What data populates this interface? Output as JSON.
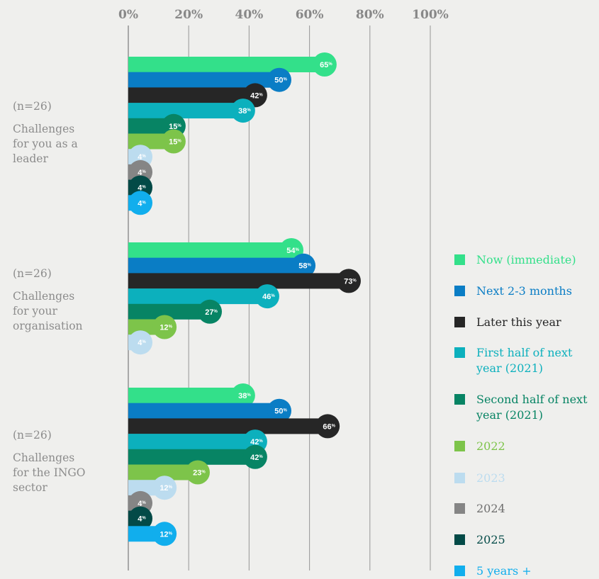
{
  "chart_data": {
    "type": "bar",
    "orientation": "horizontal",
    "xlim": [
      0,
      100
    ],
    "x_ticks": [
      "0%",
      "20%",
      "40%",
      "60%",
      "80%",
      "100%"
    ],
    "grid": true,
    "legend_position": "right",
    "value_suffix": "%",
    "groups": [
      {
        "n": "(n=26)",
        "title": "Challenges\nfor you as a\nleader",
        "values": [
          65,
          50,
          42,
          38,
          15,
          15,
          4,
          4,
          4,
          4
        ]
      },
      {
        "n": "(n=26)",
        "title": "Challenges\nfor your\norganisation",
        "values": [
          54,
          58,
          73,
          46,
          27,
          12,
          4,
          null,
          null,
          null
        ]
      },
      {
        "n": "(n=26)",
        "title": "Challenges\nfor the INGO\nsector",
        "values": [
          38,
          50,
          66,
          42,
          42,
          23,
          12,
          4,
          4,
          12
        ]
      }
    ],
    "series": [
      {
        "name": "Now (immediate)",
        "color": "#33e08a"
      },
      {
        "name": "Next 2-3 months",
        "color": "#0a7dc5"
      },
      {
        "name": "Later this year",
        "color": "#262626"
      },
      {
        "name": "First half of next\nyear (2021)",
        "color": "#0cb0bd"
      },
      {
        "name": "Second half of next\nyear (2021)",
        "color": "#078464"
      },
      {
        "name": "2022",
        "color": "#7dc44a"
      },
      {
        "name": "2023",
        "color": "#bcdcef"
      },
      {
        "name": "2024",
        "color": "#858585"
      },
      {
        "name": "2025",
        "color": "#034a47"
      },
      {
        "name": "5 years +",
        "color": "#11aeed"
      }
    ],
    "legend_text_colors": [
      "#33e08a",
      "#0a7dc5",
      "#262626",
      "#0cb0bd",
      "#078464",
      "#7dc44a",
      "#bcdcef",
      "#6e6e6e",
      "#034a47",
      "#11aeed"
    ],
    "label_text_colors": [
      "#ffffff",
      "#ffffff",
      "#ffffff",
      "#ffffff",
      "#ffffff",
      "#ffffff",
      "#ffffff",
      "#ffffff",
      "#ffffff",
      "#ffffff"
    ]
  }
}
